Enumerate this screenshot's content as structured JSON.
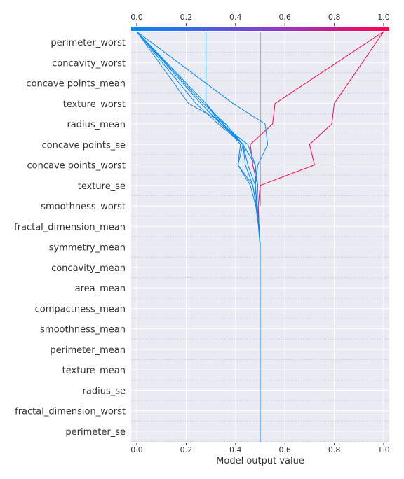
{
  "chart_data": {
    "type": "line",
    "title": "",
    "xlabel": "Model output value",
    "ylabel": "",
    "xlim": [
      0,
      1
    ],
    "x_ticks": [
      "0.0",
      "0.2",
      "0.4",
      "0.6",
      "0.8",
      "1.0"
    ],
    "x_tick_values": [
      0,
      0.2,
      0.4,
      0.6,
      0.8,
      1.0
    ],
    "top_axis_ticks": [
      "0.0",
      "0.2",
      "0.4",
      "0.6",
      "0.8",
      "1.0"
    ],
    "base_value": 0.5,
    "colorbar": {
      "low_color": "#008bfb",
      "mid_color": "#7d3fd3",
      "high_color": "#ff0052"
    },
    "grid": true,
    "features": [
      "perimeter_worst",
      "concavity_worst",
      "concave points_mean",
      "texture_worst",
      "radius_mean",
      "concave points_se",
      "concave points_worst",
      "texture_se",
      "smoothness_worst",
      "fractal_dimension_mean",
      "symmetry_mean",
      "concavity_mean",
      "area_mean",
      "compactness_mean",
      "smoothness_mean",
      "perimeter_mean",
      "texture_mean",
      "radius_se",
      "fractal_dimension_worst",
      "perimeter_se"
    ],
    "series": [
      {
        "color": "#ff0052",
        "x": [
          0.5,
          0.5,
          0.5,
          0.5,
          0.5,
          0.5,
          0.5,
          0.5,
          0.5,
          0.5,
          0.5,
          0.495,
          0.492,
          0.5,
          0.72,
          0.7,
          0.79,
          0.8,
          1.0
        ]
      },
      {
        "color": "#ff0052",
        "x": [
          0.5,
          0.5,
          0.5,
          0.5,
          0.5,
          0.5,
          0.5,
          0.5,
          0.5,
          0.5,
          0.5,
          0.496,
          0.486,
          0.49,
          0.47,
          0.46,
          0.55,
          0.56,
          1.0
        ]
      },
      {
        "color": "#008bfb",
        "x": [
          0.5,
          0.5,
          0.5,
          0.5,
          0.5,
          0.5,
          0.5,
          0.5,
          0.5,
          0.5,
          0.5,
          0.495,
          0.487,
          0.48,
          0.49,
          0.53,
          0.52,
          0.39,
          0.0
        ]
      },
      {
        "color": "#008bfb",
        "x": [
          0.5,
          0.5,
          0.5,
          0.5,
          0.5,
          0.5,
          0.5,
          0.5,
          0.5,
          0.5,
          0.5,
          0.494,
          0.485,
          0.47,
          0.44,
          0.43,
          0.36,
          0.21,
          0.0
        ]
      },
      {
        "color": "#008bfb",
        "x": [
          0.5,
          0.5,
          0.5,
          0.5,
          0.5,
          0.5,
          0.5,
          0.5,
          0.5,
          0.5,
          0.5,
          0.493,
          0.482,
          0.46,
          0.41,
          0.42,
          0.35,
          0.28,
          0.0
        ]
      },
      {
        "color": "#008bfb",
        "x": [
          0.5,
          0.5,
          0.5,
          0.5,
          0.5,
          0.5,
          0.5,
          0.5,
          0.5,
          0.5,
          0.5,
          0.493,
          0.484,
          0.47,
          0.41,
          0.43,
          0.36,
          0.27,
          0.0
        ]
      },
      {
        "color": "#008bfb",
        "x": [
          0.5,
          0.5,
          0.5,
          0.5,
          0.5,
          0.5,
          0.5,
          0.5,
          0.5,
          0.5,
          0.5,
          0.494,
          0.486,
          0.48,
          0.48,
          0.43,
          0.35,
          0.28,
          0.28
        ]
      },
      {
        "color": "#008bfb",
        "x": [
          0.5,
          0.5,
          0.5,
          0.5,
          0.5,
          0.5,
          0.5,
          0.5,
          0.5,
          0.5,
          0.5,
          0.495,
          0.487,
          0.49,
          0.48,
          0.45,
          0.34,
          0.28,
          0.28
        ]
      },
      {
        "color": "#008bfb",
        "x": [
          0.5,
          0.5,
          0.5,
          0.5,
          0.5,
          0.5,
          0.5,
          0.5,
          0.5,
          0.5,
          0.5,
          0.494,
          0.486,
          0.48,
          0.45,
          0.43,
          0.33,
          0.24,
          0.0
        ]
      },
      {
        "color": "#008bfb",
        "x": [
          0.5,
          0.5,
          0.5,
          0.5,
          0.5,
          0.5,
          0.5,
          0.5,
          0.5,
          0.5,
          0.5,
          0.495,
          0.488,
          0.48,
          0.48,
          0.43,
          0.34,
          0.26,
          0.0
        ]
      }
    ]
  }
}
